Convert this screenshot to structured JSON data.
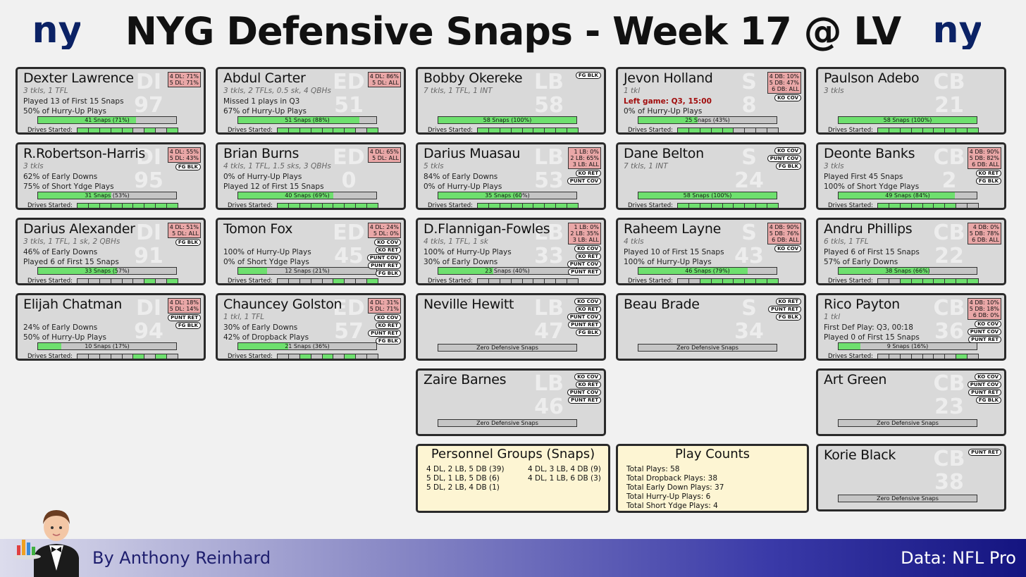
{
  "title": "NYG Defensive Snaps - Week 17 @ LV",
  "logo_text": "ny",
  "footer": {
    "byline": "By Anthony Reinhard",
    "source": "Data: NFL Pro"
  },
  "drives_label": "Drives Started:",
  "zero_label": "Zero Defensive Snaps",
  "players": [
    {
      "name": "Dexter Lawrence",
      "wm_pos": "DI",
      "wm_num": "97",
      "stats": "3 tkls, 1 TFL",
      "lines": [
        "Played 13 of First 15 Snaps",
        "50% of Hurry-Up Plays"
      ],
      "snaps": "41 Snaps (71%)",
      "pct": 71,
      "drives": [
        1,
        1,
        1,
        1,
        1,
        0,
        1,
        0,
        1
      ],
      "pos": [
        "4 DL: 71%",
        "5 DL: 71%"
      ],
      "tags": []
    },
    {
      "name": "Abdul Carter",
      "wm_pos": "ED",
      "wm_num": "51",
      "stats": "3 tkls, 2 TFLs, 0.5 sk, 4 QBHs",
      "lines": [
        "Missed 1 plays in Q3",
        "67% of Hurry-Up Plays"
      ],
      "snaps": "51 Snaps (88%)",
      "pct": 88,
      "drives": [
        1,
        1,
        1,
        1,
        1,
        1,
        1,
        0,
        1
      ],
      "pos": [
        "4 DL: 86%",
        "5 DL: ALL"
      ],
      "tags": []
    },
    {
      "name": "Bobby Okereke",
      "wm_pos": "LB",
      "wm_num": "58",
      "stats": "7 tkls, 1 TFL, 1 INT",
      "lines": [
        "",
        ""
      ],
      "snaps": "58 Snaps (100%)",
      "pct": 100,
      "drives": [
        1,
        1,
        1,
        1,
        1,
        1,
        1,
        1,
        1
      ],
      "pos": [],
      "tags": [
        "FG BLK"
      ]
    },
    {
      "name": "Jevon Holland",
      "wm_pos": "S",
      "wm_num": "8",
      "stats": "1 tkl",
      "lines": [
        "Left game: Q3, 15:00",
        "0% of Hurry-Up Plays"
      ],
      "red": true,
      "snaps": "25 Snaps (43%)",
      "pct": 43,
      "drives": [
        1,
        1,
        1,
        1,
        1,
        0,
        0,
        0,
        0
      ],
      "pos": [
        "4 DB: 10%",
        "5 DB: 47%",
        "6 DB: ALL"
      ],
      "tags": [
        "KO COV"
      ]
    },
    {
      "name": "Paulson Adebo",
      "wm_pos": "CB",
      "wm_num": "21",
      "stats": "3 tkls",
      "lines": [
        "",
        ""
      ],
      "snaps": "58 Snaps (100%)",
      "pct": 100,
      "drives": [
        1,
        1,
        1,
        1,
        1,
        1,
        1,
        1,
        1
      ],
      "pos": [],
      "tags": []
    },
    {
      "name": "R.Robertson-Harris",
      "wm_pos": "DI",
      "wm_num": "95",
      "stats": "3 tkls",
      "lines": [
        "62% of Early Downs",
        "75% of Short Ydge Plays"
      ],
      "snaps": "31 Snaps (53%)",
      "pct": 53,
      "drives": [
        1,
        1,
        1,
        1,
        1,
        1,
        1,
        1,
        1
      ],
      "pos": [
        "4 DL: 55%",
        "5 DL: 43%"
      ],
      "tags": [
        "FG BLK"
      ]
    },
    {
      "name": "Brian Burns",
      "wm_pos": "ED",
      "wm_num": "0",
      "stats": "4 tkls, 1 TFL, 1.5 sks, 3 QBHs",
      "lines": [
        "0% of Hurry-Up Plays",
        "Played 12 of First 15 Snaps"
      ],
      "snaps": "40 Snaps (69%)",
      "pct": 69,
      "drives": [
        1,
        1,
        1,
        1,
        1,
        1,
        1,
        1,
        1
      ],
      "pos": [
        "4 DL: 65%",
        "5 DL: ALL"
      ],
      "tags": []
    },
    {
      "name": "Darius Muasau",
      "wm_pos": "LB",
      "wm_num": "53",
      "stats": "5 tkls",
      "lines": [
        "84% of Early Downs",
        "0% of Hurry-Up Plays"
      ],
      "snaps": "35 Snaps (60%)",
      "pct": 60,
      "drives": [
        1,
        1,
        1,
        1,
        1,
        1,
        1,
        1,
        1
      ],
      "pos": [
        "1 LB: 0%",
        "2 LB: 65%",
        "3 LB: ALL"
      ],
      "tags": [
        "KO RET",
        "PUNT COV"
      ]
    },
    {
      "name": "Dane Belton",
      "wm_pos": "S",
      "wm_num": "24",
      "stats": "7 tkls, 1 INT",
      "lines": [
        "",
        ""
      ],
      "snaps": "58 Snaps (100%)",
      "pct": 100,
      "drives": [
        1,
        1,
        1,
        1,
        1,
        1,
        1,
        1,
        1
      ],
      "pos": [],
      "tags": [
        "KO COV",
        "PUNT COV",
        "FG BLK"
      ]
    },
    {
      "name": "Deonte Banks",
      "wm_pos": "CB",
      "wm_num": "2",
      "stats": "3 tkls",
      "lines": [
        "Played First 45 Snaps",
        "100% of Short Ydge Plays"
      ],
      "snaps": "49 Snaps (84%)",
      "pct": 84,
      "drives": [
        1,
        1,
        1,
        1,
        1,
        1,
        1,
        0,
        0
      ],
      "pos": [
        "4 DB: 90%",
        "5 DB: 82%",
        "6 DB: ALL"
      ],
      "tags": [
        "KO RET",
        "FG BLK"
      ]
    },
    {
      "name": "Darius Alexander",
      "wm_pos": "DI",
      "wm_num": "91",
      "stats": "3 tkls, 1 TFL, 1 sk, 2 QBHs",
      "lines": [
        "46% of Early Downs",
        "Played 6 of First 15 Snaps"
      ],
      "snaps": "33 Snaps (57%)",
      "pct": 57,
      "drives": [
        0,
        0,
        0,
        0,
        0,
        0,
        1,
        0,
        1
      ],
      "pos": [
        "4 DL: 51%",
        "5 DL: ALL"
      ],
      "tags": [
        "FG BLK"
      ]
    },
    {
      "name": "Tomon Fox",
      "wm_pos": "ED",
      "wm_num": "45",
      "stats": "",
      "lines": [
        "100% of Hurry-Up Plays",
        "0% of Short Ydge Plays"
      ],
      "snaps": "12 Snaps (21%)",
      "pct": 21,
      "drives": [
        0,
        0,
        0,
        0,
        0,
        1,
        0,
        0,
        1
      ],
      "pos": [
        "4 DL: 24%",
        "5 DL: 0%"
      ],
      "tags": [
        "KO COV",
        "KO RET",
        "PUNT COV",
        "PUNT RET",
        "FG BLK"
      ]
    },
    {
      "name": "D.Flannigan-Fowles",
      "wm_pos": "LB",
      "wm_num": "33",
      "stats": "4 tkls, 1 TFL, 1 sk",
      "lines": [
        "100% of Hurry-Up Plays",
        "30% of Early Downs"
      ],
      "snaps": "23 Snaps (40%)",
      "pct": 40,
      "drives": [
        0,
        0,
        0,
        0,
        0,
        0,
        0,
        0,
        0
      ],
      "pos": [
        "1 LB: 0%",
        "2 LB: 35%",
        "3 LB: ALL"
      ],
      "tags": [
        "KO COV",
        "KO RET",
        "PUNT COV",
        "PUNT RET"
      ]
    },
    {
      "name": "Raheem Layne",
      "wm_pos": "S",
      "wm_num": "43",
      "stats": "4 tkls",
      "lines": [
        "Played 10 of First 15 Snaps",
        "100% of Hurry-Up Plays"
      ],
      "snaps": "46 Snaps (79%)",
      "pct": 79,
      "drives": [
        0,
        0,
        1,
        1,
        1,
        1,
        1,
        1,
        1
      ],
      "pos": [
        "4 DB: 90%",
        "5 DB: 76%",
        "6 DB: ALL"
      ],
      "tags": [
        "KO COV"
      ]
    },
    {
      "name": "Andru Phillips",
      "wm_pos": "CB",
      "wm_num": "22",
      "stats": "6 tkls, 1 TFL",
      "lines": [
        "Played 6 of First 15 Snaps",
        "57% of Early Downs"
      ],
      "snaps": "38 Snaps (66%)",
      "pct": 66,
      "drives": [
        0,
        0,
        1,
        1,
        1,
        1,
        1,
        1,
        1
      ],
      "pos": [
        "4 DB: 0%",
        "5 DB: 78%",
        "6 DB: ALL"
      ],
      "tags": []
    },
    {
      "name": "Elijah Chatman",
      "wm_pos": "DI",
      "wm_num": "94",
      "stats": "",
      "lines": [
        "24% of Early Downs",
        "50% of Hurry-Up Plays"
      ],
      "snaps": "10 Snaps (17%)",
      "pct": 17,
      "drives": [
        0,
        0,
        0,
        0,
        0,
        1,
        0,
        1,
        0
      ],
      "pos": [
        "4 DL: 18%",
        "5 DL: 14%"
      ],
      "tags": [
        "PUNT RET",
        "FG BLK"
      ]
    },
    {
      "name": "Chauncey Golston",
      "wm_pos": "ED",
      "wm_num": "57",
      "stats": "1 tkl, 1 TFL",
      "lines": [
        "30% of Early Downs",
        "42% of Dropback Plays"
      ],
      "snaps": "21 Snaps (36%)",
      "pct": 36,
      "drives": [
        0,
        0,
        1,
        0,
        1,
        0,
        1,
        0,
        0
      ],
      "pos": [
        "4 DL: 31%",
        "5 DL: 71%"
      ],
      "tags": [
        "KO COV",
        "KO RET",
        "PUNT RET",
        "FG BLK"
      ]
    },
    {
      "name": "Neville Hewitt",
      "wm_pos": "LB",
      "wm_num": "47",
      "zero": true,
      "stats": "",
      "lines": [
        "",
        ""
      ],
      "tags": [
        "KO COV",
        "KO RET",
        "PUNT COV",
        "PUNT RET",
        "FG BLK"
      ]
    },
    {
      "name": "Beau Brade",
      "wm_pos": "S",
      "wm_num": "34",
      "zero": true,
      "stats": "",
      "lines": [
        "",
        ""
      ],
      "tags": [
        "KO RET",
        "PUNT RET",
        "FG BLK"
      ]
    },
    {
      "name": "Rico Payton",
      "wm_pos": "CB",
      "wm_num": "36",
      "stats": "1 tkl",
      "lines": [
        "First Def Play: Q3, 00:18",
        "Played 0 of First 15 Snaps"
      ],
      "snaps": "9 Snaps (16%)",
      "pct": 16,
      "drives": [
        0,
        0,
        0,
        0,
        0,
        0,
        0,
        1,
        0
      ],
      "pos": [
        "4 DB: 10%",
        "5 DB: 18%",
        "6 DB: 0%"
      ],
      "tags": [
        "KO COV",
        "PUNT COV",
        "PUNT RET"
      ]
    },
    {
      "name": "Zaire Barnes",
      "wm_pos": "LB",
      "wm_num": "46",
      "zero": true,
      "stats": "",
      "lines": [
        "",
        ""
      ],
      "tags": [
        "KO COV",
        "KO RET",
        "PUNT COV",
        "PUNT RET"
      ]
    },
    {
      "name": "Art Green",
      "wm_pos": "CB",
      "wm_num": "23",
      "zero": true,
      "stats": "",
      "lines": [
        "",
        ""
      ],
      "tags": [
        "KO COV",
        "PUNT COV",
        "PUNT RET",
        "FG BLK"
      ]
    },
    {
      "name": "Korie Black",
      "wm_pos": "CB",
      "wm_num": "38",
      "zero": true,
      "stats": "",
      "lines": [
        "",
        ""
      ],
      "tags": [
        "PUNT RET"
      ]
    }
  ],
  "personnel": {
    "title": "Personnel Groups (Snaps)",
    "left": [
      "4 DL, 2 LB, 5 DB (39)",
      "5 DL, 1 LB, 5 DB (6)",
      "5 DL, 2 LB, 4 DB (1)"
    ],
    "right": [
      "4 DL, 3 LB, 4 DB (9)",
      "4 DL, 1 LB, 6 DB (3)"
    ]
  },
  "play_counts": {
    "title": "Play Counts",
    "items": [
      "Total Plays: 58",
      "Total Dropback Plays: 38",
      "Total Early Down Plays: 37",
      "Total Hurry-Up Plays: 6",
      "Total Short Ydge Plays: 4"
    ]
  }
}
